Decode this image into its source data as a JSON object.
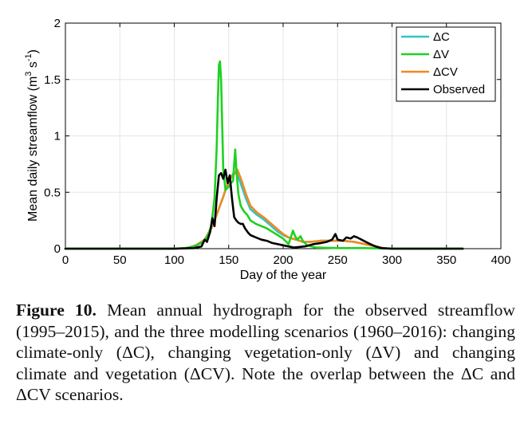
{
  "chart_data": {
    "type": "line",
    "title": "",
    "xlabel": "Day of the year",
    "ylabel_main": "Mean daily streamflow  (m",
    "ylabel_sup1": "3",
    "ylabel_mid": " s",
    "ylabel_sup2": "-1",
    "ylabel_end": ")",
    "xlim": [
      0,
      400
    ],
    "ylim": [
      0,
      2
    ],
    "xticks": [
      0,
      50,
      100,
      150,
      200,
      250,
      300,
      350,
      400
    ],
    "yticks": [
      0,
      0.5,
      1,
      1.5,
      2
    ],
    "xtick_labels": [
      "0",
      "50",
      "100",
      "150",
      "200",
      "250",
      "300",
      "350",
      "400"
    ],
    "ytick_labels": [
      "0",
      "0.5",
      "1",
      "1.5",
      "2"
    ],
    "grid": true,
    "legend_position": "top-right",
    "series": [
      {
        "name": "ΔC",
        "color": "#2fc5c8",
        "points": [
          [
            0,
            0
          ],
          [
            100,
            0
          ],
          [
            112,
            0.005
          ],
          [
            120,
            0.03
          ],
          [
            128,
            0.08
          ],
          [
            135,
            0.2
          ],
          [
            140,
            0.33
          ],
          [
            145,
            0.46
          ],
          [
            148,
            0.55
          ],
          [
            152,
            0.63
          ],
          [
            155,
            0.68
          ],
          [
            158,
            0.66
          ],
          [
            162,
            0.55
          ],
          [
            166,
            0.44
          ],
          [
            170,
            0.35
          ],
          [
            176,
            0.3
          ],
          [
            182,
            0.26
          ],
          [
            188,
            0.21
          ],
          [
            195,
            0.15
          ],
          [
            200,
            0.12
          ],
          [
            205,
            0.1
          ],
          [
            212,
            0.08
          ],
          [
            218,
            0.06
          ],
          [
            225,
            0.06
          ],
          [
            235,
            0.07
          ],
          [
            245,
            0.07
          ],
          [
            255,
            0.07
          ],
          [
            265,
            0.06
          ],
          [
            275,
            0.04
          ],
          [
            285,
            0.02
          ],
          [
            292,
            0.005
          ],
          [
            300,
            0
          ],
          [
            365,
            0
          ]
        ]
      },
      {
        "name": "ΔV",
        "color": "#1fd11f",
        "points": [
          [
            0,
            0
          ],
          [
            100,
            0
          ],
          [
            110,
            0.005
          ],
          [
            118,
            0.02
          ],
          [
            125,
            0.05
          ],
          [
            130,
            0.1
          ],
          [
            134,
            0.2
          ],
          [
            137,
            0.45
          ],
          [
            139,
            0.9
          ],
          [
            140,
            1.3
          ],
          [
            141,
            1.63
          ],
          [
            142,
            1.66
          ],
          [
            143,
            1.5
          ],
          [
            144,
            1.1
          ],
          [
            145,
            0.7
          ],
          [
            147,
            0.52
          ],
          [
            150,
            0.55
          ],
          [
            152,
            0.58
          ],
          [
            154,
            0.6
          ],
          [
            155,
            0.75
          ],
          [
            156,
            0.88
          ],
          [
            157,
            0.7
          ],
          [
            159,
            0.48
          ],
          [
            161,
            0.38
          ],
          [
            164,
            0.33
          ],
          [
            167,
            0.3
          ],
          [
            170,
            0.25
          ],
          [
            175,
            0.22
          ],
          [
            180,
            0.2
          ],
          [
            185,
            0.18
          ],
          [
            190,
            0.15
          ],
          [
            195,
            0.12
          ],
          [
            200,
            0.09
          ],
          [
            203,
            0.06
          ],
          [
            205,
            0.04
          ],
          [
            207,
            0.1
          ],
          [
            209,
            0.16
          ],
          [
            211,
            0.11
          ],
          [
            213,
            0.08
          ],
          [
            216,
            0.11
          ],
          [
            218,
            0.07
          ],
          [
            222,
            0.03
          ],
          [
            230,
            0.01
          ],
          [
            250,
            0.005
          ],
          [
            275,
            0.005
          ],
          [
            300,
            0
          ],
          [
            365,
            0
          ]
        ]
      },
      {
        "name": "ΔCV",
        "color": "#f08a1f",
        "points": [
          [
            0,
            0
          ],
          [
            100,
            0
          ],
          [
            112,
            0.005
          ],
          [
            120,
            0.03
          ],
          [
            128,
            0.08
          ],
          [
            135,
            0.2
          ],
          [
            140,
            0.33
          ],
          [
            145,
            0.46
          ],
          [
            148,
            0.55
          ],
          [
            152,
            0.63
          ],
          [
            155,
            0.66
          ],
          [
            158,
            0.7
          ],
          [
            162,
            0.6
          ],
          [
            166,
            0.48
          ],
          [
            170,
            0.38
          ],
          [
            176,
            0.32
          ],
          [
            182,
            0.28
          ],
          [
            188,
            0.23
          ],
          [
            195,
            0.17
          ],
          [
            200,
            0.13
          ],
          [
            205,
            0.1
          ],
          [
            212,
            0.08
          ],
          [
            218,
            0.06
          ],
          [
            225,
            0.06
          ],
          [
            235,
            0.07
          ],
          [
            245,
            0.07
          ],
          [
            255,
            0.07
          ],
          [
            265,
            0.06
          ],
          [
            275,
            0.04
          ],
          [
            285,
            0.02
          ],
          [
            292,
            0.005
          ],
          [
            300,
            0
          ],
          [
            365,
            0
          ]
        ]
      },
      {
        "name": "Observed",
        "color": "#000000",
        "points": [
          [
            0,
            0
          ],
          [
            100,
            0
          ],
          [
            118,
            0.005
          ],
          [
            125,
            0.02
          ],
          [
            128,
            0.08
          ],
          [
            130,
            0.06
          ],
          [
            133,
            0.15
          ],
          [
            135,
            0.27
          ],
          [
            137,
            0.2
          ],
          [
            139,
            0.45
          ],
          [
            141,
            0.65
          ],
          [
            143,
            0.67
          ],
          [
            145,
            0.62
          ],
          [
            147,
            0.7
          ],
          [
            149,
            0.58
          ],
          [
            151,
            0.65
          ],
          [
            153,
            0.45
          ],
          [
            155,
            0.28
          ],
          [
            157,
            0.25
          ],
          [
            159,
            0.23
          ],
          [
            161,
            0.22
          ],
          [
            163,
            0.22
          ],
          [
            165,
            0.18
          ],
          [
            168,
            0.14
          ],
          [
            170,
            0.12
          ],
          [
            175,
            0.1
          ],
          [
            180,
            0.08
          ],
          [
            185,
            0.07
          ],
          [
            190,
            0.05
          ],
          [
            195,
            0.04
          ],
          [
            200,
            0.03
          ],
          [
            205,
            0.02
          ],
          [
            210,
            0.01
          ],
          [
            220,
            0.02
          ],
          [
            228,
            0.04
          ],
          [
            235,
            0.05
          ],
          [
            240,
            0.06
          ],
          [
            245,
            0.08
          ],
          [
            248,
            0.13
          ],
          [
            250,
            0.08
          ],
          [
            255,
            0.07
          ],
          [
            258,
            0.1
          ],
          [
            262,
            0.09
          ],
          [
            265,
            0.11
          ],
          [
            268,
            0.1
          ],
          [
            272,
            0.08
          ],
          [
            276,
            0.06
          ],
          [
            280,
            0.04
          ],
          [
            285,
            0.02
          ],
          [
            290,
            0.005
          ],
          [
            300,
            0
          ],
          [
            365,
            0
          ]
        ]
      }
    ]
  },
  "caption": {
    "label": "Figure 10.",
    "text": " Mean annual hydrograph for the observed streamflow (1995–2015), and the three modelling scenarios (1960–2016): changing climate-only (ΔC), changing vegetation-only (ΔV) and changing climate and vegetation (ΔCV). Note the overlap between the ΔC and ΔCV scenarios."
  }
}
